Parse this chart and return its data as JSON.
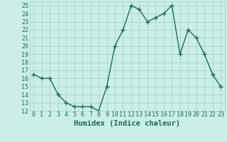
{
  "x": [
    0,
    1,
    2,
    3,
    4,
    5,
    6,
    7,
    8,
    9,
    10,
    11,
    12,
    13,
    14,
    15,
    16,
    17,
    18,
    19,
    20,
    21,
    22,
    23
  ],
  "y": [
    16.5,
    16,
    16,
    14,
    13,
    12.5,
    12.5,
    12.5,
    12,
    15,
    20,
    22,
    25,
    24.5,
    23,
    23.5,
    24,
    25,
    19,
    22,
    21,
    19,
    16.5,
    15
  ],
  "line_color": "#1a6b5a",
  "marker": "+",
  "marker_size": 4,
  "linewidth": 1.0,
  "xlabel": "Humidex (Indice chaleur)",
  "xlim": [
    -0.5,
    23.5
  ],
  "ylim": [
    12,
    25.5
  ],
  "yticks": [
    12,
    13,
    14,
    15,
    16,
    17,
    18,
    19,
    20,
    21,
    22,
    23,
    24,
    25
  ],
  "xtick_labels": [
    "0",
    "1",
    "2",
    "3",
    "4",
    "5",
    "6",
    "7",
    "8",
    "9",
    "10",
    "11",
    "12",
    "13",
    "14",
    "15",
    "16",
    "17",
    "18",
    "19",
    "20",
    "21",
    "22",
    "23"
  ],
  "background_color": "#cceee8",
  "grid_color": "#aad8d0",
  "tick_fontsize": 6,
  "xlabel_fontsize": 7.5
}
